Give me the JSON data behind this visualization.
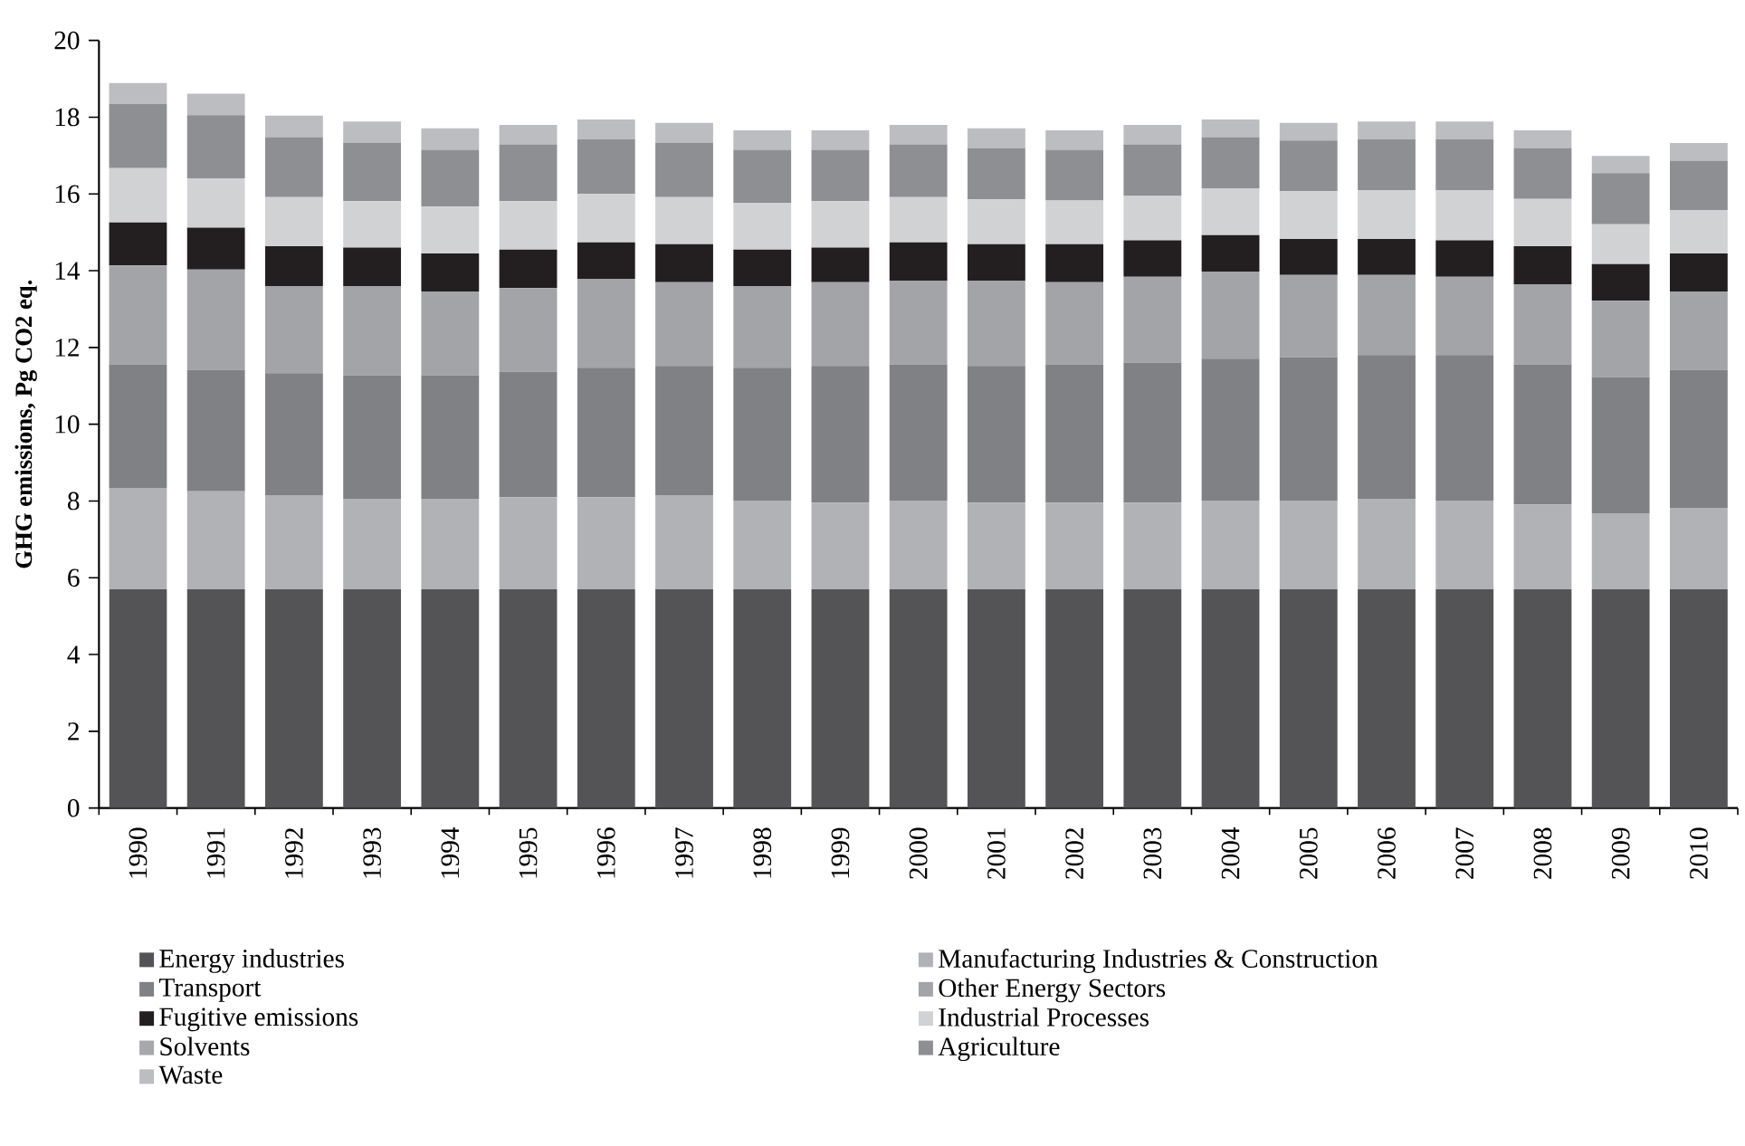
{
  "chart_data": {
    "type": "bar",
    "stacked": true,
    "ylabel": "GHG emissions, Pg CO2 eq.",
    "ylim": [
      0,
      20
    ],
    "yticks": [
      0,
      2,
      4,
      6,
      8,
      10,
      12,
      14,
      16,
      18,
      20
    ],
    "legend": "bottom",
    "categories": [
      "1990",
      "1991",
      "1992",
      "1993",
      "1994",
      "1995",
      "1996",
      "1997",
      "1998",
      "1999",
      "2000",
      "2001",
      "2002",
      "2003",
      "2004",
      "2005",
      "2006",
      "2007",
      "2008",
      "2009",
      "2010"
    ],
    "series": [
      {
        "name": "Energy industries",
        "color": "#545456",
        "values": [
          5.7,
          5.7,
          5.7,
          5.7,
          5.7,
          5.7,
          5.7,
          5.7,
          5.7,
          5.7,
          5.7,
          5.7,
          5.7,
          5.7,
          5.7,
          5.7,
          5.7,
          5.7,
          5.7,
          5.7,
          5.7
        ]
      },
      {
        "name": "Manufacturing Industries & Construction",
        "color": "#b1b2b6",
        "values": [
          2.64,
          2.55,
          2.45,
          2.36,
          2.36,
          2.4,
          2.4,
          2.45,
          2.31,
          2.26,
          2.31,
          2.26,
          2.26,
          2.26,
          2.31,
          2.31,
          2.36,
          2.31,
          2.21,
          1.98,
          2.12
        ]
      },
      {
        "name": "Transport",
        "color": "#808185",
        "values": [
          3.22,
          3.17,
          3.18,
          3.22,
          3.22,
          3.27,
          3.37,
          3.37,
          3.46,
          3.56,
          3.55,
          3.56,
          3.6,
          3.65,
          3.7,
          3.74,
          3.74,
          3.79,
          3.65,
          3.55,
          3.6
        ]
      },
      {
        "name": "Other Energy Sectors",
        "color": "#a3a4a7",
        "values": [
          2.58,
          2.61,
          2.27,
          2.32,
          2.18,
          2.18,
          2.32,
          2.18,
          2.13,
          2.18,
          2.18,
          2.22,
          2.14,
          2.23,
          2.27,
          2.14,
          2.09,
          2.04,
          2.09,
          1.99,
          2.04
        ]
      },
      {
        "name": "Fugitive emissions",
        "color": "#231f20",
        "values": [
          1.12,
          1.09,
          1.04,
          1.0,
          0.99,
          1.0,
          0.95,
          0.99,
          0.95,
          0.9,
          1.0,
          0.95,
          0.99,
          0.95,
          0.95,
          0.94,
          0.94,
          0.95,
          0.99,
          0.95,
          0.99
        ]
      },
      {
        "name": "Industrial Processes",
        "color": "#d1d2d4",
        "values": [
          1.41,
          1.29,
          1.28,
          1.21,
          1.22,
          1.26,
          1.26,
          1.23,
          1.22,
          1.21,
          1.18,
          1.17,
          1.14,
          1.16,
          1.22,
          1.24,
          1.27,
          1.31,
          1.23,
          1.04,
          1.13
        ]
      },
      {
        "name": "Solvents",
        "color": "#a7a8ab",
        "values": [
          null,
          null,
          null,
          null,
          null,
          null,
          null,
          null,
          null,
          null,
          null,
          null,
          null,
          null,
          null,
          null,
          null,
          null,
          null,
          null,
          null
        ]
      },
      {
        "name": "Agriculture",
        "color": "#8e8f93",
        "values": [
          1.67,
          1.64,
          1.56,
          1.53,
          1.48,
          1.48,
          1.43,
          1.42,
          1.38,
          1.34,
          1.37,
          1.34,
          1.32,
          1.34,
          1.33,
          1.32,
          1.33,
          1.33,
          1.33,
          1.33,
          1.29
        ]
      },
      {
        "name": "Waste",
        "color": "#bcbdc0",
        "values": [
          0.55,
          0.56,
          0.56,
          0.55,
          0.56,
          0.51,
          0.51,
          0.51,
          0.51,
          0.51,
          0.51,
          0.51,
          0.51,
          0.51,
          0.46,
          0.46,
          0.46,
          0.46,
          0.46,
          0.45,
          0.46
        ]
      }
    ]
  }
}
